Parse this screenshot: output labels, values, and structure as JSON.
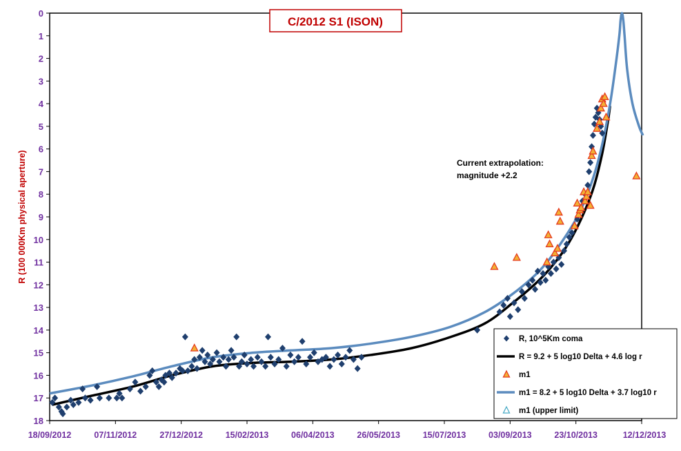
{
  "chart_data": {
    "type": "scatter",
    "title": "C/2012 S1 (ISON)",
    "ylabel": "R (100 000Km physical aperture)",
    "xlabel": "",
    "y_inverted": true,
    "ylim": [
      0,
      18
    ],
    "xlim": [
      "2012-09-18",
      "2013-12-12"
    ],
    "yticks": [
      "0",
      "1",
      "2",
      "3",
      "4",
      "5",
      "6",
      "7",
      "8",
      "9",
      "10",
      "11",
      "12",
      "13",
      "14",
      "15",
      "16",
      "17",
      "18"
    ],
    "xticks": [
      "18/09/2012",
      "07/11/2012",
      "27/12/2012",
      "15/02/2013",
      "06/04/2013",
      "26/05/2013",
      "15/07/2013",
      "03/09/2013",
      "23/10/2013",
      "12/12/2013"
    ],
    "grid": false,
    "legend_position": "bottom-right",
    "annotation": {
      "line1": "Current extrapolation:",
      "line2": "magnitude +2.2"
    },
    "series": [
      {
        "name": "R, 10^5Km coma",
        "kind": "scatter",
        "marker": "diamond",
        "color": "#1F3F6E",
        "points": [
          [
            "2012-09-20",
            17.2
          ],
          [
            "2012-09-22",
            17.0
          ],
          [
            "2012-09-25",
            17.4
          ],
          [
            "2012-09-27",
            17.6
          ],
          [
            "2012-09-28",
            17.7
          ],
          [
            "2012-10-01",
            17.4
          ],
          [
            "2012-10-04",
            17.1
          ],
          [
            "2012-10-06",
            17.3
          ],
          [
            "2012-10-10",
            17.2
          ],
          [
            "2012-10-13",
            16.6
          ],
          [
            "2012-10-15",
            17.0
          ],
          [
            "2012-10-19",
            17.1
          ],
          [
            "2012-10-24",
            16.5
          ],
          [
            "2012-10-26",
            17.0
          ],
          [
            "2012-11-02",
            17.0
          ],
          [
            "2012-11-08",
            17.0
          ],
          [
            "2012-11-10",
            16.8
          ],
          [
            "2012-11-12",
            17.0
          ],
          [
            "2012-11-18",
            16.6
          ],
          [
            "2012-11-22",
            16.3
          ],
          [
            "2012-11-26",
            16.7
          ],
          [
            "2012-11-30",
            16.5
          ],
          [
            "2012-12-03",
            16.0
          ],
          [
            "2012-12-05",
            15.8
          ],
          [
            "2012-12-08",
            16.3
          ],
          [
            "2012-12-10",
            16.5
          ],
          [
            "2012-12-12",
            16.2
          ],
          [
            "2012-12-14",
            16.3
          ],
          [
            "2012-12-15",
            16.0
          ],
          [
            "2012-12-18",
            15.9
          ],
          [
            "2012-12-20",
            16.1
          ],
          [
            "2012-12-23",
            15.9
          ],
          [
            "2012-12-26",
            15.7
          ],
          [
            "2012-12-28",
            15.8
          ],
          [
            "2012-12-30",
            14.3
          ],
          [
            "2013-01-01",
            15.8
          ],
          [
            "2013-01-04",
            15.6
          ],
          [
            "2013-01-06",
            15.3
          ],
          [
            "2013-01-08",
            15.7
          ],
          [
            "2013-01-10",
            15.2
          ],
          [
            "2013-01-12",
            14.9
          ],
          [
            "2013-01-14",
            15.4
          ],
          [
            "2013-01-16",
            15.1
          ],
          [
            "2013-01-18",
            15.5
          ],
          [
            "2013-01-20",
            15.3
          ],
          [
            "2013-01-23",
            15.0
          ],
          [
            "2013-01-25",
            15.4
          ],
          [
            "2013-01-28",
            15.2
          ],
          [
            "2013-01-30",
            15.6
          ],
          [
            "2013-02-01",
            15.3
          ],
          [
            "2013-02-03",
            14.9
          ],
          [
            "2013-02-05",
            15.2
          ],
          [
            "2013-02-07",
            14.3
          ],
          [
            "2013-02-09",
            15.6
          ],
          [
            "2013-02-11",
            15.4
          ],
          [
            "2013-02-13",
            15.1
          ],
          [
            "2013-02-15",
            15.5
          ],
          [
            "2013-02-18",
            15.3
          ],
          [
            "2013-02-20",
            15.6
          ],
          [
            "2013-02-23",
            15.2
          ],
          [
            "2013-02-26",
            15.4
          ],
          [
            "2013-03-01",
            15.6
          ],
          [
            "2013-03-03",
            14.3
          ],
          [
            "2013-03-05",
            15.2
          ],
          [
            "2013-03-08",
            15.5
          ],
          [
            "2013-03-11",
            15.3
          ],
          [
            "2013-03-14",
            14.8
          ],
          [
            "2013-03-17",
            15.6
          ],
          [
            "2013-03-20",
            15.1
          ],
          [
            "2013-03-23",
            15.4
          ],
          [
            "2013-03-26",
            15.2
          ],
          [
            "2013-03-29",
            14.5
          ],
          [
            "2013-04-01",
            15.5
          ],
          [
            "2013-04-04",
            15.2
          ],
          [
            "2013-04-07",
            15.0
          ],
          [
            "2013-04-10",
            15.4
          ],
          [
            "2013-04-13",
            15.3
          ],
          [
            "2013-04-16",
            15.2
          ],
          [
            "2013-04-19",
            15.6
          ],
          [
            "2013-04-22",
            15.3
          ],
          [
            "2013-04-25",
            15.1
          ],
          [
            "2013-04-28",
            15.5
          ],
          [
            "2013-05-01",
            15.2
          ],
          [
            "2013-05-04",
            14.9
          ],
          [
            "2013-05-07",
            15.3
          ],
          [
            "2013-05-10",
            15.7
          ],
          [
            "2013-05-13",
            15.2
          ],
          [
            "2013-08-09",
            14.0
          ],
          [
            "2013-08-26",
            13.2
          ],
          [
            "2013-08-29",
            12.9
          ],
          [
            "2013-09-01",
            12.6
          ],
          [
            "2013-09-03",
            13.4
          ],
          [
            "2013-09-06",
            12.8
          ],
          [
            "2013-09-09",
            13.1
          ],
          [
            "2013-09-12",
            12.3
          ],
          [
            "2013-09-14",
            12.6
          ],
          [
            "2013-09-17",
            12.0
          ],
          [
            "2013-09-20",
            11.8
          ],
          [
            "2013-09-22",
            12.2
          ],
          [
            "2013-09-24",
            11.4
          ],
          [
            "2013-09-26",
            11.9
          ],
          [
            "2013-09-28",
            11.5
          ],
          [
            "2013-09-30",
            11.8
          ],
          [
            "2013-10-02",
            11.2
          ],
          [
            "2013-10-04",
            11.5
          ],
          [
            "2013-10-06",
            11.0
          ],
          [
            "2013-10-08",
            11.3
          ],
          [
            "2013-10-10",
            10.8
          ],
          [
            "2013-10-12",
            11.1
          ],
          [
            "2013-10-14",
            10.5
          ],
          [
            "2013-10-16",
            10.2
          ],
          [
            "2013-10-18",
            9.9
          ],
          [
            "2013-10-20",
            9.7
          ],
          [
            "2013-10-22",
            9.4
          ],
          [
            "2013-10-24",
            9.1
          ],
          [
            "2013-10-26",
            8.7
          ],
          [
            "2013-10-28",
            8.3
          ],
          [
            "2013-10-30",
            8.0
          ],
          [
            "2013-11-01",
            7.6
          ],
          [
            "2013-11-02",
            7.0
          ],
          [
            "2013-11-03",
            6.6
          ],
          [
            "2013-11-04",
            5.9
          ],
          [
            "2013-11-05",
            5.4
          ],
          [
            "2013-11-06",
            4.9
          ],
          [
            "2013-11-07",
            4.6
          ],
          [
            "2013-11-08",
            4.2
          ],
          [
            "2013-11-09",
            4.4
          ],
          [
            "2013-11-10",
            4.7
          ],
          [
            "2013-11-11",
            5.0
          ],
          [
            "2013-11-12",
            5.3
          ]
        ]
      },
      {
        "name": "R = 9.2 + 5 log10 Delta + 4.6  log r",
        "kind": "line",
        "color": "#000000",
        "points": [
          [
            "2012-09-20",
            17.3
          ],
          [
            "2012-10-20",
            16.9
          ],
          [
            "2012-11-20",
            16.5
          ],
          [
            "2012-12-20",
            16.0
          ],
          [
            "2013-01-20",
            15.6
          ],
          [
            "2013-02-20",
            15.45
          ],
          [
            "2013-03-20",
            15.4
          ],
          [
            "2013-04-20",
            15.3
          ],
          [
            "2013-05-20",
            15.1
          ],
          [
            "2013-06-20",
            14.8
          ],
          [
            "2013-07-20",
            14.3
          ],
          [
            "2013-08-15",
            13.7
          ],
          [
            "2013-09-05",
            12.8
          ],
          [
            "2013-09-25",
            11.8
          ],
          [
            "2013-10-10",
            10.8
          ],
          [
            "2013-10-20",
            9.9
          ],
          [
            "2013-10-30",
            8.7
          ],
          [
            "2013-11-06",
            7.6
          ],
          [
            "2013-11-12",
            6.2
          ],
          [
            "2013-11-16",
            4.9
          ],
          [
            "2013-11-18",
            4.1
          ]
        ]
      },
      {
        "name": "m1",
        "kind": "scatter",
        "marker": "triangle",
        "color": "#E53A1F",
        "fill": "#F2B134",
        "points": [
          [
            "2013-01-06",
            14.8
          ],
          [
            "2013-08-22",
            11.2
          ],
          [
            "2013-09-08",
            10.8
          ],
          [
            "2013-10-01",
            11.0
          ],
          [
            "2013-10-02",
            9.8
          ],
          [
            "2013-10-03",
            10.2
          ],
          [
            "2013-10-07",
            10.6
          ],
          [
            "2013-10-09",
            10.4
          ],
          [
            "2013-10-10",
            8.8
          ],
          [
            "2013-10-11",
            9.2
          ],
          [
            "2013-10-22",
            9.4
          ],
          [
            "2013-10-24",
            8.4
          ],
          [
            "2013-10-25",
            8.9
          ],
          [
            "2013-10-26",
            8.7
          ],
          [
            "2013-10-27",
            8.6
          ],
          [
            "2013-10-29",
            7.9
          ],
          [
            "2013-10-30",
            8.3
          ],
          [
            "2013-10-31",
            8.1
          ],
          [
            "2013-11-01",
            7.9
          ],
          [
            "2013-11-03",
            8.5
          ],
          [
            "2013-11-04",
            6.3
          ],
          [
            "2013-11-05",
            6.1
          ],
          [
            "2013-11-08",
            5.1
          ],
          [
            "2013-11-10",
            4.8
          ],
          [
            "2013-11-11",
            4.2
          ],
          [
            "2013-11-12",
            3.8
          ],
          [
            "2013-11-13",
            4.0
          ],
          [
            "2013-11-14",
            3.7
          ],
          [
            "2013-11-15",
            4.6
          ],
          [
            "2013-12-08",
            7.2
          ]
        ]
      },
      {
        "name": "m1 = 8.2 + 5 log10 Delta + 3.7 log10 r",
        "kind": "line",
        "color": "#5B8BBE",
        "points": [
          [
            "2012-09-18",
            16.8
          ],
          [
            "2012-10-20",
            16.45
          ],
          [
            "2012-11-20",
            16.05
          ],
          [
            "2012-12-20",
            15.6
          ],
          [
            "2013-01-20",
            15.2
          ],
          [
            "2013-02-20",
            15.0
          ],
          [
            "2013-03-20",
            14.9
          ],
          [
            "2013-04-20",
            14.8
          ],
          [
            "2013-05-20",
            14.6
          ],
          [
            "2013-06-20",
            14.3
          ],
          [
            "2013-07-20",
            13.85
          ],
          [
            "2013-08-15",
            13.2
          ],
          [
            "2013-09-05",
            12.4
          ],
          [
            "2013-09-25",
            11.4
          ],
          [
            "2013-10-10",
            10.3
          ],
          [
            "2013-10-25",
            8.9
          ],
          [
            "2013-11-05",
            7.3
          ],
          [
            "2013-11-12",
            5.8
          ],
          [
            "2013-11-18",
            4.0
          ],
          [
            "2013-11-22",
            2.4
          ],
          [
            "2013-11-25",
            1.0
          ],
          [
            "2013-11-26",
            0.3
          ],
          [
            "2013-11-27",
            0.0
          ],
          [
            "2013-11-28",
            0.3
          ],
          [
            "2013-11-29",
            1.0
          ],
          [
            "2013-12-01",
            2.5
          ],
          [
            "2013-12-05",
            4.0
          ],
          [
            "2013-12-10",
            5.0
          ],
          [
            "2013-12-13",
            5.4
          ]
        ]
      },
      {
        "name": "m1 (upper limit)",
        "kind": "scatter",
        "marker": "triangle-open",
        "color": "#4BACC6",
        "points": []
      }
    ]
  }
}
